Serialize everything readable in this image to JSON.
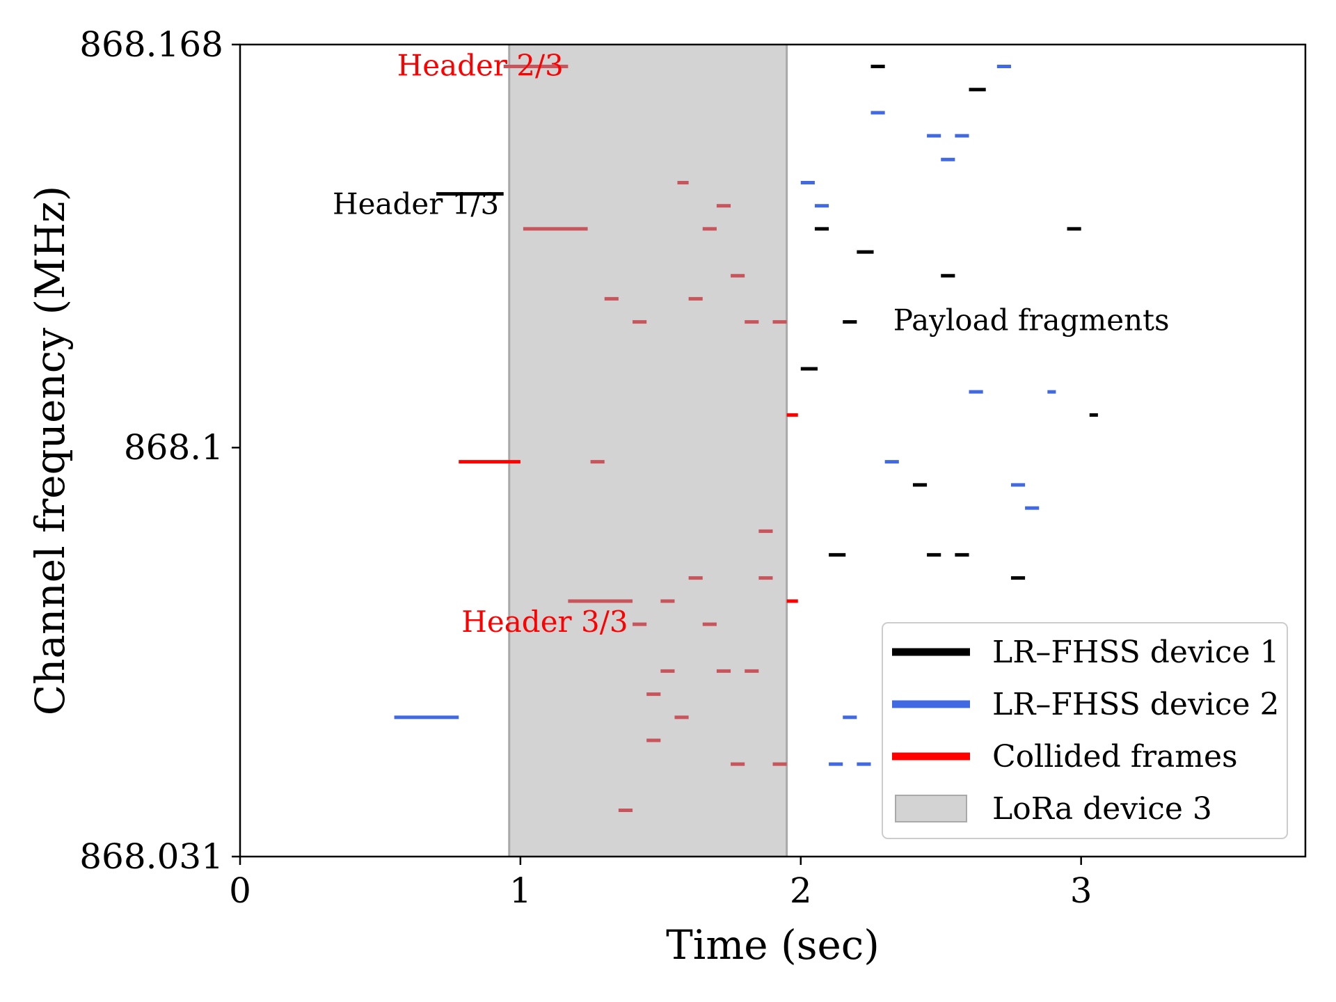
{
  "chart_data": {
    "type": "timeline",
    "xlabel": "Time (sec)",
    "ylabel": "Channel frequency (MHz)",
    "xlim": [
      0,
      3.8
    ],
    "ylim": [
      868.031,
      868.168
    ],
    "xticks": [
      0,
      1,
      2,
      3
    ],
    "yticks": [
      868.031,
      868.1,
      868.168
    ],
    "xtick_labels": [
      "0",
      "1",
      "2",
      "3"
    ],
    "ytick_labels": [
      "868.031",
      "868.1",
      "868.168"
    ],
    "colors": {
      "device1": "#000000",
      "device2": "#4169e1",
      "collided": "#ff0000",
      "collided_in_band": "#c8555c",
      "lora_band": "#d3d3d3",
      "lora_edge": "#a9a9a9"
    },
    "lora_band": {
      "x_start": 0.96,
      "x_end": 1.95
    },
    "annotations": [
      {
        "text": "Header 2/3",
        "x": 0.56,
        "y": 868.1628,
        "color": "#ff0000"
      },
      {
        "text": "Header 1/3",
        "x": 0.33,
        "y": 868.1394,
        "color": "#000000"
      },
      {
        "text": "Header 3/3",
        "x": 0.79,
        "y": 868.0689,
        "color": "#ff0000"
      },
      {
        "text": "Payload fragments",
        "x": 2.33,
        "y": 868.1198,
        "color": "#000000"
      }
    ],
    "legend": {
      "position": "bottom-right",
      "entries": [
        {
          "label": "LR–FHSS device 1",
          "kind": "line",
          "color": "#000000"
        },
        {
          "label": "LR–FHSS device 2",
          "kind": "line",
          "color": "#4169e1"
        },
        {
          "label": "Collided frames",
          "kind": "line",
          "color": "#ff0000"
        },
        {
          "label": "LoRa device 3",
          "kind": "patch",
          "color": "#d3d3d3"
        }
      ]
    },
    "series": [
      {
        "name": "LR–FHSS device 1",
        "color": "#000000",
        "segments": [
          [
            0.7,
            0.94,
            868.1428
          ],
          [
            2.25,
            2.3,
            868.1643
          ],
          [
            2.6,
            2.66,
            868.1604
          ],
          [
            2.05,
            2.1,
            868.1369
          ],
          [
            2.95,
            3.0,
            868.1369
          ],
          [
            2.2,
            2.26,
            868.133
          ],
          [
            2.5,
            2.55,
            868.129
          ],
          [
            2.15,
            2.2,
            868.1212
          ],
          [
            2.0,
            2.06,
            868.1133
          ],
          [
            3.03,
            3.06,
            868.1055
          ],
          [
            2.4,
            2.45,
            868.0937
          ],
          [
            2.1,
            2.16,
            868.0819
          ],
          [
            2.45,
            2.5,
            868.0819
          ],
          [
            2.55,
            2.6,
            868.0819
          ],
          [
            2.75,
            2.8,
            868.078
          ]
        ]
      },
      {
        "name": "LR–FHSS device 2",
        "color": "#4169e1",
        "segments": [
          [
            0.55,
            0.78,
            868.0545
          ],
          [
            2.7,
            2.75,
            868.1643
          ],
          [
            2.25,
            2.3,
            868.1565
          ],
          [
            2.45,
            2.5,
            868.1526
          ],
          [
            2.55,
            2.6,
            868.1526
          ],
          [
            2.5,
            2.55,
            868.1486
          ],
          [
            2.0,
            2.05,
            868.1447
          ],
          [
            2.05,
            2.1,
            868.1408
          ],
          [
            2.6,
            2.65,
            868.1094
          ],
          [
            2.88,
            2.91,
            868.1094
          ],
          [
            2.3,
            2.35,
            868.0976
          ],
          [
            2.75,
            2.8,
            868.0937
          ],
          [
            2.8,
            2.85,
            868.0898
          ],
          [
            2.15,
            2.2,
            868.0545
          ],
          [
            2.1,
            2.15,
            868.0466
          ],
          [
            2.2,
            2.25,
            868.0466
          ]
        ]
      },
      {
        "name": "Collided frames",
        "color": "#ff0000",
        "segments": [
          [
            0.94,
            1.17,
            868.1643
          ],
          [
            0.78,
            1.0,
            868.0976
          ],
          [
            1.01,
            1.24,
            868.1369
          ],
          [
            1.95,
            1.99,
            868.1055
          ],
          [
            1.95,
            1.99,
            868.0741
          ],
          [
            1.56,
            1.6,
            868.1447
          ],
          [
            1.7,
            1.75,
            868.1408
          ],
          [
            1.65,
            1.7,
            868.1369
          ],
          [
            1.75,
            1.8,
            868.129
          ],
          [
            1.3,
            1.35,
            868.1251
          ],
          [
            1.6,
            1.65,
            868.1251
          ],
          [
            1.4,
            1.45,
            868.1212
          ],
          [
            1.8,
            1.85,
            868.1212
          ],
          [
            1.9,
            1.95,
            868.1212
          ],
          [
            1.25,
            1.3,
            868.0976
          ],
          [
            1.85,
            1.9,
            868.0859
          ],
          [
            1.6,
            1.65,
            868.078
          ],
          [
            1.85,
            1.9,
            868.078
          ],
          [
            1.17,
            1.4,
            868.0741
          ],
          [
            1.5,
            1.55,
            868.0741
          ],
          [
            1.4,
            1.45,
            868.0702
          ],
          [
            1.65,
            1.7,
            868.0702
          ],
          [
            1.5,
            1.55,
            868.0623
          ],
          [
            1.7,
            1.75,
            868.0623
          ],
          [
            1.8,
            1.85,
            868.0623
          ],
          [
            1.45,
            1.5,
            868.0584
          ],
          [
            1.55,
            1.6,
            868.0545
          ],
          [
            1.45,
            1.5,
            868.0506
          ],
          [
            1.75,
            1.8,
            868.0466
          ],
          [
            1.9,
            1.95,
            868.0466
          ],
          [
            1.35,
            1.4,
            868.0388
          ]
        ]
      }
    ]
  }
}
